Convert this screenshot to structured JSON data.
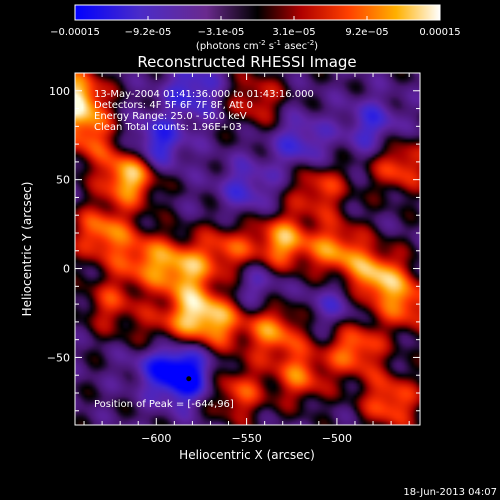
{
  "chart_data": {
    "type": "heatmap",
    "title": "Reconstructed RHESSI Image",
    "xlabel": "Heliocentric X (arcsec)",
    "ylabel": "Heliocentric Y (arcsec)",
    "xlim": [
      -645,
      -454
    ],
    "ylim": [
      -88,
      110
    ],
    "xticks": [
      -600,
      -550,
      -500
    ],
    "yticks": [
      -50,
      0,
      50,
      100
    ],
    "colorbar": {
      "range": [
        -0.00015,
        0.00015
      ],
      "tick_labels": [
        "-0.00015",
        "-9.2e-05",
        "-3.1e-05",
        "3.1e-05",
        "9.2e-05",
        "0.00015"
      ],
      "unit_label": "(photons cm",
      "unit_sup1": "-2",
      "unit_mid": " s",
      "unit_sup2": "-1",
      "unit_mid2": " asec",
      "unit_sup3": "-2",
      "unit_close": ")"
    },
    "annotations": {
      "time": "13-May-2004 01:41:36.000 to 01:43:16.000",
      "detectors": "Detectors: 4F 5F 6F 7F 8F, Att 0",
      "energy": "Energy Range: 25.0 - 50.0 keV",
      "clean": "Clean     Total counts: 1.96E+03",
      "peak": "Position of Peak = [-644,96]"
    },
    "peak": [
      -644,
      96
    ],
    "bright_regions": [
      {
        "x": -615,
        "y": 52,
        "amp": 0.95
      },
      {
        "x": -645,
        "y": 96,
        "amp": 1.0
      },
      {
        "x": -638,
        "y": 75,
        "amp": 0.55
      },
      {
        "x": -630,
        "y": 20,
        "amp": 0.7
      },
      {
        "x": -607,
        "y": 5,
        "amp": 0.6
      },
      {
        "x": -585,
        "y": 0,
        "amp": 0.75
      },
      {
        "x": -580,
        "y": -25,
        "amp": 0.7
      },
      {
        "x": -565,
        "y": -30,
        "amp": 0.6
      },
      {
        "x": -560,
        "y": 10,
        "amp": 0.55
      },
      {
        "x": -530,
        "y": 15,
        "amp": 0.8
      },
      {
        "x": -500,
        "y": 10,
        "amp": 0.7
      },
      {
        "x": -478,
        "y": -5,
        "amp": 0.85
      },
      {
        "x": -460,
        "y": -20,
        "amp": 0.6
      },
      {
        "x": -490,
        "y": -45,
        "amp": 0.7
      },
      {
        "x": -520,
        "y": -60,
        "amp": 0.6
      },
      {
        "x": -555,
        "y": -70,
        "amp": 0.55
      },
      {
        "x": -510,
        "y": 45,
        "amp": 0.55
      },
      {
        "x": -465,
        "y": 58,
        "amp": 0.6
      },
      {
        "x": -545,
        "y": 95,
        "amp": 0.45
      },
      {
        "x": -600,
        "y": -40,
        "amp": 0.5
      },
      {
        "x": -625,
        "y": -20,
        "amp": 0.45
      },
      {
        "x": -470,
        "y": -75,
        "amp": 0.65
      },
      {
        "x": -535,
        "y": -35,
        "amp": 0.7
      }
    ],
    "dark_regions": [
      {
        "x": -600,
        "y": 70,
        "amp": 0.6
      },
      {
        "x": -580,
        "y": 100,
        "amp": 0.5
      },
      {
        "x": -585,
        "y": -60,
        "amp": 0.9
      },
      {
        "x": -600,
        "y": -50,
        "amp": 0.55
      },
      {
        "x": -480,
        "y": 80,
        "amp": 0.45
      },
      {
        "x": -520,
        "y": 70,
        "amp": 0.45
      },
      {
        "x": -550,
        "y": 45,
        "amp": 0.4
      },
      {
        "x": -500,
        "y": -20,
        "amp": 0.35
      },
      {
        "x": -545,
        "y": -10,
        "amp": 0.35
      }
    ],
    "footer_date": "18-Jun-2013 04:07"
  }
}
